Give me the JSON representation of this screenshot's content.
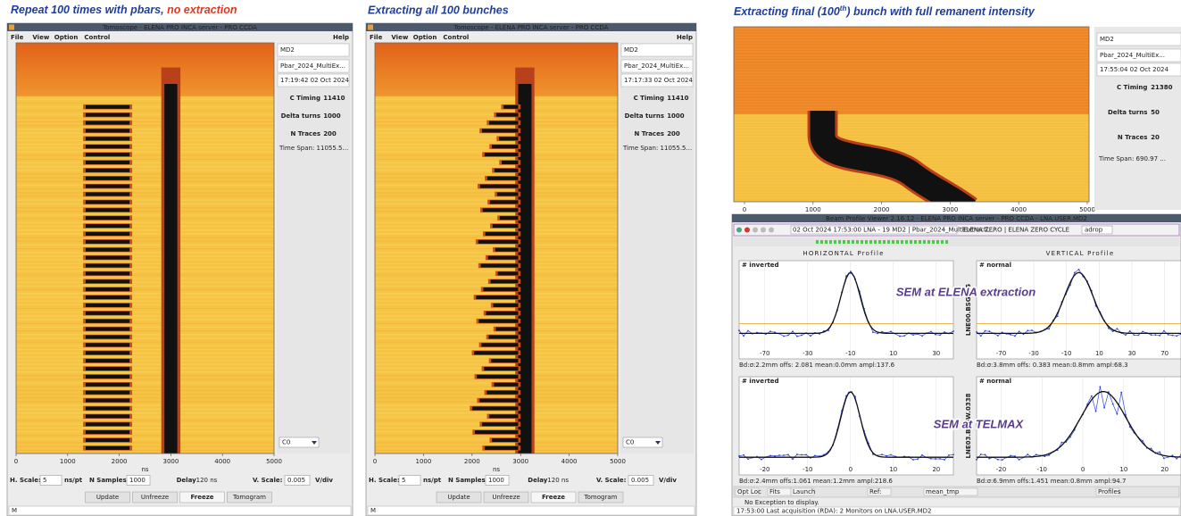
{
  "captions": [
    {
      "text": "Repeat 100 times with pbars, ",
      "highlight": "no extraction"
    },
    {
      "text": "Extracting all 100 bunches"
    },
    {
      "text": "Extracting final (100",
      "sup": "th",
      "rest": ") bunch with full remanent intensity"
    }
  ],
  "tomoscopes": [
    {
      "title": "Tomoscope - ELENA PRO INCA server - PRO CCDA",
      "menu": [
        "File",
        "View",
        "Option",
        "Control"
      ],
      "help": "Help",
      "device": "MD2",
      "cycle": "Pbar_2024_MultiEx...",
      "time": "17:19:42 02 Oct 2024",
      "fields": [
        {
          "label": "C Timing",
          "value": "11410"
        },
        {
          "label": "Delta turns",
          "value": "1000"
        },
        {
          "label": "N Traces",
          "value": "200"
        }
      ],
      "time_span": "Time Span: 11055.5...",
      "channel": "C0",
      "xticks": [
        "0",
        "1000",
        "2000",
        "3000",
        "4000",
        "5000"
      ],
      "xlabel": "ns",
      "controls": {
        "h_scale_label": "H. Scale:",
        "h_scale": "5",
        "h_unit": "ns/pt",
        "n_samples_label": "N Samples",
        "n_samples": "1000",
        "delay_label": "Delay",
        "delay": "120 ns",
        "v_scale_label": "V. Scale:",
        "v_scale": "0.005",
        "v_unit": "V/div"
      },
      "buttons": [
        "Update",
        "Unfreeze",
        "Freeze",
        "Tomogram"
      ],
      "status": "M"
    },
    {
      "title": "Tomoscope - ELENA PRO INCA server - PRO CCDA",
      "menu": [
        "File",
        "View",
        "Option",
        "Control"
      ],
      "help": "Help",
      "device": "MD2",
      "cycle": "Pbar_2024_MultiEx...",
      "time": "17:17:33 02 Oct 2024",
      "fields": [
        {
          "label": "C Timing",
          "value": "11410"
        },
        {
          "label": "Delta turns",
          "value": "1000"
        },
        {
          "label": "N Traces",
          "value": "200"
        }
      ],
      "time_span": "Time Span: 11055.5...",
      "channel": "C0",
      "xticks": [
        "0",
        "1000",
        "2000",
        "3000",
        "4000",
        "5000"
      ],
      "xlabel": "ns",
      "controls": {
        "h_scale_label": "H. Scale:",
        "h_scale": "5",
        "h_unit": "ns/pt",
        "n_samples_label": "N Samples",
        "n_samples": "1000",
        "delay_label": "Delay",
        "delay": "120 ns",
        "v_scale_label": "V. Scale:",
        "v_scale": "0.005",
        "v_unit": "V/div"
      },
      "buttons": [
        "Update",
        "Unfreeze",
        "Freeze",
        "Tomogram"
      ],
      "status": "M"
    }
  ],
  "final_view": {
    "device": "MD2",
    "cycle": "Pbar_2024_MultiEx...",
    "time": "17:55:04 02 Oct 2024",
    "fields": [
      {
        "label": "C Timing",
        "value": "21380"
      },
      {
        "label": "Delta turns",
        "value": "50"
      },
      {
        "label": "N Traces",
        "value": "20"
      }
    ],
    "time_span": "Time Span: 690.97 ...",
    "xticks": [
      "0",
      "1000",
      "2000",
      "3000",
      "4000",
      "5000"
    ]
  },
  "profile_viewer": {
    "title": "Beam Profile Viewer 2.16.12 - ELENA PRO INCA server - PRO CCDA - LNA.USER.MD2",
    "cycle_info": "02 Oct 2024 17:53:00 LNA - 19 MD2 | Pbar_2024_MultiExtracti...",
    "cycle_name": "ELENA ZERO | ELENA ZERO CYCLE",
    "user": "adrop",
    "horizontal_header": "HORIZONTAL Profile",
    "vertical_header": "VERTICAL Profile",
    "monitors": [
      {
        "name": "LNE00.BSGW.5",
        "annotation": "SEM at ELENA extraction",
        "plots": [
          {
            "tag": "# inverted",
            "xticks": [
              "-70",
              "-30",
              "-10",
              "10",
              "30"
            ],
            "stats": "Bd:σ:2.2mm offs: 2.081 mean:0.0mm ampl:137.6"
          },
          {
            "tag": "# normal",
            "xticks": [
              "-70",
              "-30",
              "-10",
              "10",
              "30",
              "70"
            ],
            "stats": "Bd:σ:3.8mm offs: 0.383 mean:0.8mm ampl:68.3"
          }
        ]
      },
      {
        "name": "LNE03.BSGW.0338",
        "annotation": "SEM at TELMAX",
        "plots": [
          {
            "tag": "# inverted",
            "xticks": [
              "-20",
              "-10",
              "0",
              "10",
              "20"
            ],
            "stats": "Bd:σ:2.4mm offs:1.061 mean:1.2mm ampl:218.6"
          },
          {
            "tag": "# normal",
            "xticks": [
              "-20",
              "-10",
              "0",
              "10",
              "20"
            ],
            "stats": "Bd:σ:6.9mm offs:1.451 mean:0.8mm ampl:94.7"
          }
        ]
      }
    ],
    "bottom_controls": [
      "Opt Loc",
      "Fits",
      "Launch",
      "Ref:",
      "mean_tmp",
      "Profiles"
    ],
    "message": "No Exception to display.",
    "status": "17:53:00 Last acquisition (RDA): 2 Monitors on LNA.USER.MD2"
  }
}
